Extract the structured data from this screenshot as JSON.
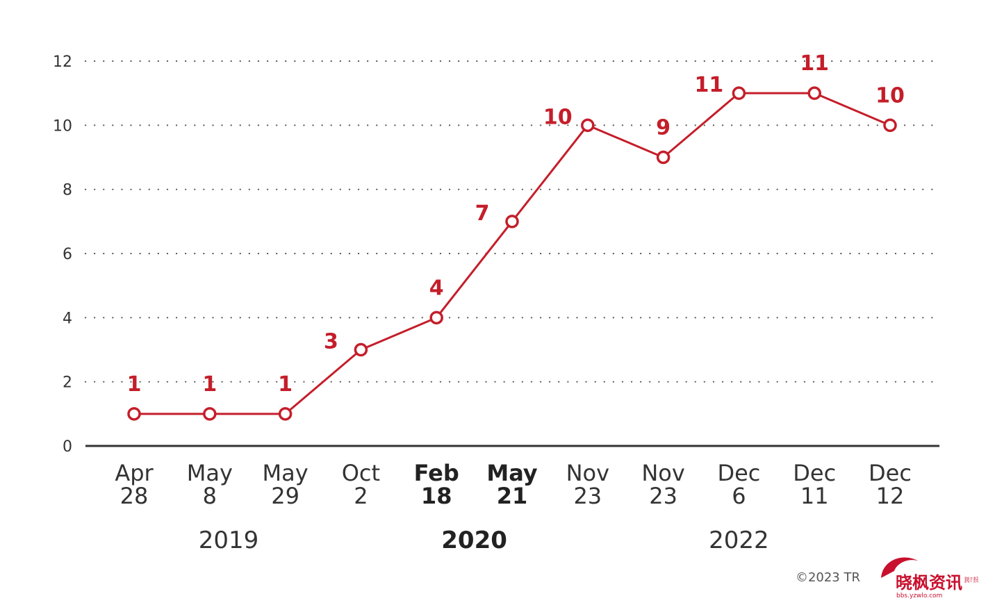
{
  "chart_data": {
    "type": "line",
    "categories": [
      {
        "line1": "Apr",
        "line2": "28",
        "bold": false
      },
      {
        "line1": "May",
        "line2": "8",
        "bold": false
      },
      {
        "line1": "May",
        "line2": "29",
        "bold": false
      },
      {
        "line1": "Oct",
        "line2": "2",
        "bold": false
      },
      {
        "line1": "Feb",
        "line2": "18",
        "bold": true
      },
      {
        "line1": "May",
        "line2": "21",
        "bold": true
      },
      {
        "line1": "Nov",
        "line2": "23",
        "bold": false
      },
      {
        "line1": "Nov",
        "line2": "23",
        "bold": false
      },
      {
        "line1": "Dec",
        "line2": "6",
        "bold": false
      },
      {
        "line1": "Dec",
        "line2": "11",
        "bold": false
      },
      {
        "line1": "Dec",
        "line2": "12",
        "bold": false
      }
    ],
    "values": [
      1,
      1,
      1,
      3,
      4,
      7,
      10,
      9,
      11,
      11,
      10
    ],
    "data_labels": [
      "1",
      "1",
      "1",
      "3",
      "4",
      "7",
      "10",
      "9",
      "11",
      "11",
      "10"
    ],
    "years": [
      {
        "label": "2019",
        "bold": false
      },
      {
        "label": "2020",
        "bold": true
      },
      {
        "label": "2022",
        "bold": false
      }
    ],
    "ylim": [
      0,
      12
    ],
    "yticks": [
      "0",
      "2",
      "4",
      "6",
      "8",
      "10",
      "12"
    ],
    "grid": "dotted-horizontal",
    "colors": {
      "line": "#c41e2a",
      "axis": "#333333",
      "grid": "#555555"
    }
  },
  "credit": "©2023 TR",
  "watermark": {
    "text": "晓枫资讯",
    "url": "bbs.yzwlo.com",
    "side_text": "游戏 IT 资讯"
  }
}
